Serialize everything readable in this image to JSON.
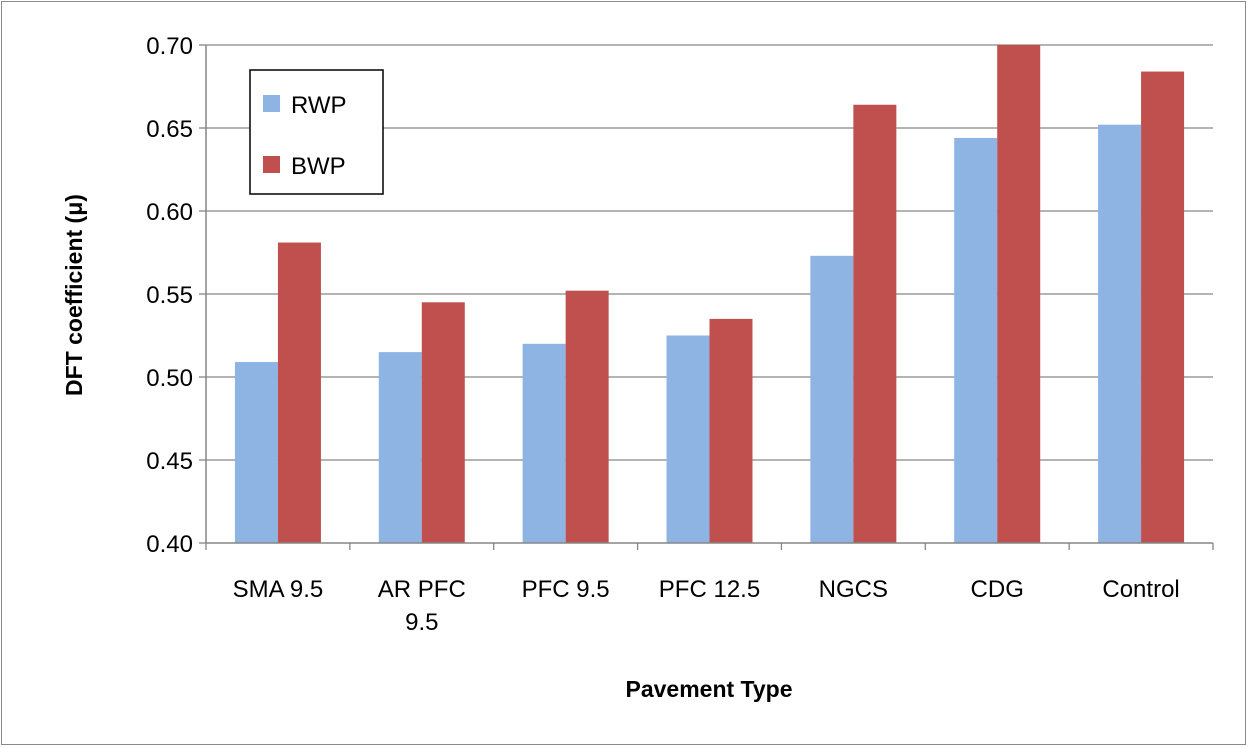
{
  "chart_data": {
    "type": "bar",
    "title": "",
    "xlabel": "Pavement Type",
    "ylabel": "DFT coefficient (μ)",
    "ylim": [
      0.4,
      0.7
    ],
    "yticks": [
      "0.40",
      "0.45",
      "0.50",
      "0.55",
      "0.60",
      "0.65",
      "0.70"
    ],
    "grid": true,
    "legend_position": "top-left",
    "categories": [
      [
        "SMA 9.5"
      ],
      [
        "AR PFC",
        "9.5"
      ],
      [
        "PFC 9.5"
      ],
      [
        "PFC 12.5"
      ],
      [
        "NGCS"
      ],
      [
        "CDG"
      ],
      [
        "Control"
      ]
    ],
    "series": [
      {
        "name": "RWP",
        "color": "#8eb4e3",
        "values": [
          0.509,
          0.515,
          0.52,
          0.525,
          0.573,
          0.644,
          0.652
        ]
      },
      {
        "name": "BWP",
        "color": "#c0504d",
        "values": [
          0.581,
          0.545,
          0.552,
          0.535,
          0.664,
          0.7,
          0.684
        ]
      }
    ]
  }
}
